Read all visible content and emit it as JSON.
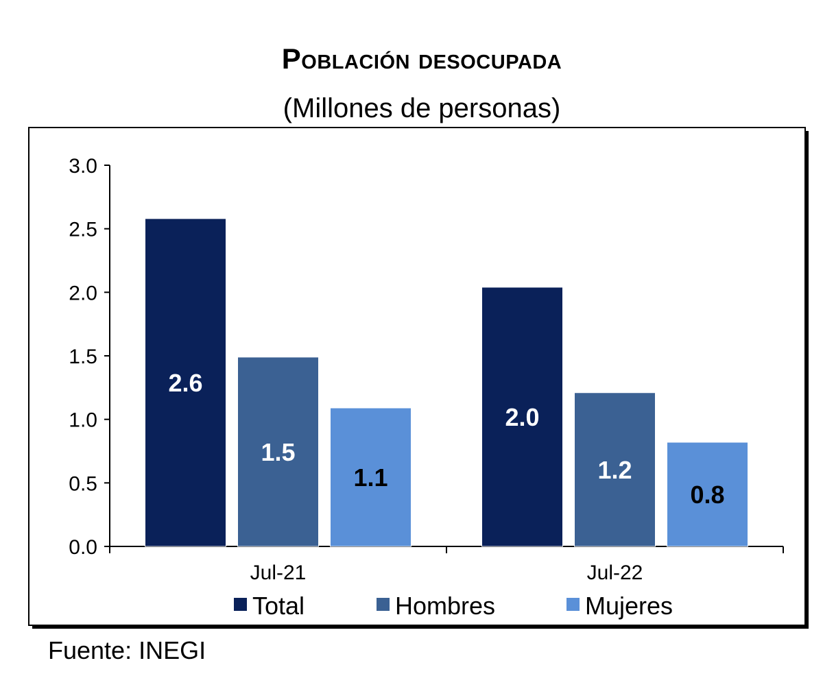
{
  "chart_data": {
    "type": "bar",
    "title": "Población desocupada",
    "subtitle": "(Millones de personas)",
    "categories": [
      "Jul-21",
      "Jul-22"
    ],
    "series": [
      {
        "name": "Total",
        "values": [
          2.58,
          2.04
        ],
        "labels": [
          "2.6",
          "2.0"
        ],
        "color": "#0a2159",
        "label_color": "#ffffff"
      },
      {
        "name": "Hombres",
        "values": [
          1.49,
          1.21
        ],
        "labels": [
          "1.5",
          "1.2"
        ],
        "color": "#3b6193",
        "label_color": "#ffffff"
      },
      {
        "name": "Mujeres",
        "values": [
          1.09,
          0.82
        ],
        "labels": [
          "1.1",
          "0.8"
        ],
        "color": "#5a90d8",
        "label_color": "#000000"
      }
    ],
    "y_ticks": [
      "0.0",
      "0.5",
      "1.0",
      "1.5",
      "2.0",
      "2.5",
      "3.0"
    ],
    "ylim": [
      0,
      3.0
    ],
    "grid": false,
    "legend_position": "bottom"
  },
  "source": "Fuente: INEGI"
}
